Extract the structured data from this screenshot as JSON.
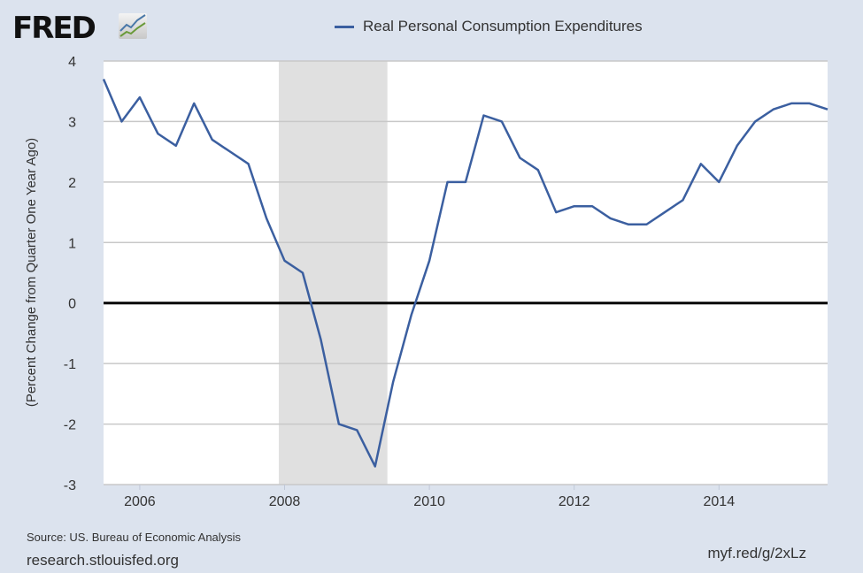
{
  "header": {
    "logo": "FRED",
    "logo_icon": "fred-chart-logo-icon"
  },
  "footer": {
    "source": "Source: US. Bureau of Economic Analysis",
    "site": "research.stlouisfed.org",
    "short_url": "myf.red/g/2xLz"
  },
  "chart_data": {
    "type": "line",
    "title": "",
    "ylabel": "(Percent Change from Quarter One Year Ago)",
    "xlabel": "",
    "ylim": [
      -3,
      4
    ],
    "xlim": [
      2005.5,
      2015.5
    ],
    "yticks": [
      "4",
      "3",
      "2",
      "1",
      "0",
      "-1",
      "-2",
      "-3"
    ],
    "xticks": [
      "2006",
      "2008",
      "2010",
      "2012",
      "2014"
    ],
    "grid": true,
    "legend_position": "top",
    "recession": {
      "start": 2007.92,
      "end": 2009.42,
      "color": "#e0e0e0"
    },
    "series": [
      {
        "name": "Real Personal Consumption Expenditures",
        "color": "#3b5fa0",
        "x": [
          "2005-Q3",
          "2005-Q4",
          "2006-Q1",
          "2006-Q2",
          "2006-Q3",
          "2006-Q4",
          "2007-Q1",
          "2007-Q2",
          "2007-Q3",
          "2007-Q4",
          "2008-Q1",
          "2008-Q2",
          "2008-Q3",
          "2008-Q4",
          "2009-Q1",
          "2009-Q2",
          "2009-Q3",
          "2009-Q4",
          "2010-Q1",
          "2010-Q2",
          "2010-Q3",
          "2010-Q4",
          "2011-Q1",
          "2011-Q2",
          "2011-Q3",
          "2011-Q4",
          "2012-Q1",
          "2012-Q2",
          "2012-Q3",
          "2012-Q4",
          "2013-Q1",
          "2013-Q2",
          "2013-Q3",
          "2013-Q4",
          "2014-Q1",
          "2014-Q2",
          "2014-Q3",
          "2014-Q4",
          "2015-Q1",
          "2015-Q2",
          "2015-Q3"
        ],
        "values": [
          3.7,
          3.0,
          3.4,
          2.8,
          2.6,
          3.3,
          2.7,
          2.5,
          2.3,
          1.4,
          0.7,
          0.5,
          -0.6,
          -2.0,
          -2.1,
          -2.7,
          -1.3,
          -0.2,
          0.7,
          2.0,
          2.0,
          3.1,
          3.0,
          2.4,
          2.2,
          1.5,
          1.6,
          1.6,
          1.4,
          1.3,
          1.3,
          1.5,
          1.7,
          2.3,
          2.0,
          2.6,
          3.0,
          3.2,
          3.3,
          3.3,
          3.2
        ]
      }
    ]
  }
}
